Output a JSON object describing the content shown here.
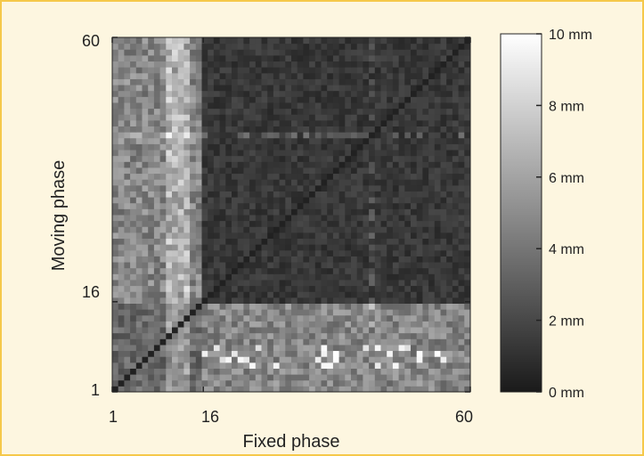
{
  "chart_data": {
    "type": "heatmap",
    "title": "",
    "xlabel": "Fixed phase",
    "ylabel": "Moving phase",
    "x_range": [
      1,
      60
    ],
    "y_range": [
      1,
      60
    ],
    "x_ticks": [
      "1",
      "16",
      "60"
    ],
    "y_ticks": [
      "1",
      "16",
      "60"
    ],
    "colormap": "grayscale",
    "color_range": [
      0,
      10
    ],
    "colorbar_ticks": [
      "0 mm",
      "2 mm",
      "4 mm",
      "6 mm",
      "8 mm",
      "10 mm"
    ],
    "colorbar_unit": "mm",
    "grid": false,
    "description_of_values": {
      "phases_1_to_15_block": "moderate distances (approx 2-5 mm) with diagonal near 0 mm",
      "phases_16_to_60_block": "low distances (approx 0.5-2 mm)",
      "cross_blocks": "higher distances (approx 3-8 mm), bright spots up to 10 mm"
    }
  },
  "colors": {
    "background": "#fdf6e0",
    "frame_border": "#f5c84a",
    "plot_low": "#1a1a1a",
    "plot_high": "#ffffff"
  }
}
